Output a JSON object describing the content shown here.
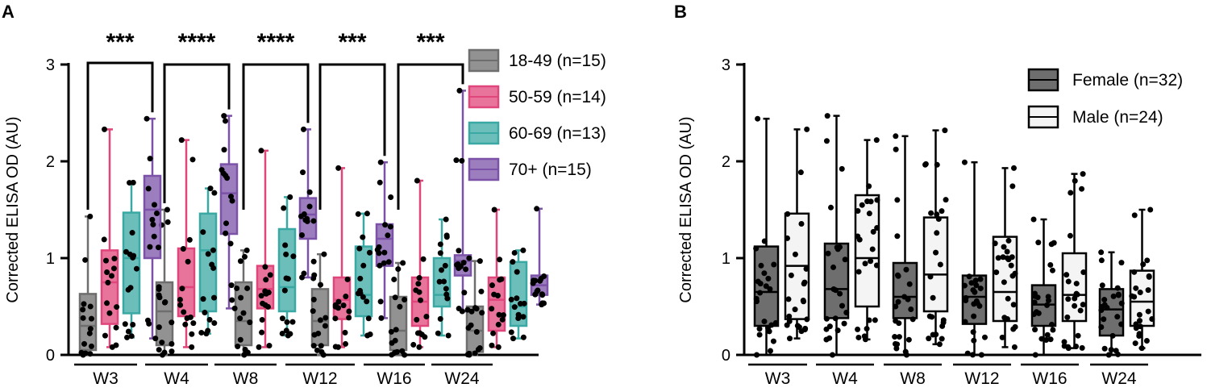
{
  "chart_data": [
    {
      "panel": "A",
      "type": "box",
      "xlabel": "",
      "ylabel": "Corrected ELISA OD (AU)",
      "ylim": [
        0,
        3
      ],
      "yticks": [
        0,
        1,
        2,
        3
      ],
      "categories": [
        "W3",
        "W4",
        "W8",
        "W12",
        "W16",
        "W24"
      ],
      "legend_position": "top-right",
      "series": [
        {
          "name": "18-49 (n=15)",
          "color": "#6e6e6e",
          "stats": [
            {
              "min": 0.0,
              "q1": 0.05,
              "median": 0.3,
              "q3": 0.63,
              "max": 1.43
            },
            {
              "min": 0.0,
              "q1": 0.1,
              "median": 0.45,
              "q3": 0.75,
              "max": 1.5
            },
            {
              "min": 0.0,
              "q1": 0.1,
              "median": 0.35,
              "q3": 0.75,
              "max": 1.08
            },
            {
              "min": 0.0,
              "q1": 0.1,
              "median": 0.35,
              "q3": 0.68,
              "max": 1.04
            },
            {
              "min": 0.0,
              "q1": 0.05,
              "median": 0.25,
              "q3": 0.6,
              "max": 0.95
            },
            {
              "min": 0.0,
              "q1": 0.03,
              "median": 0.25,
              "q3": 0.5,
              "max": 0.97
            }
          ]
        },
        {
          "name": "50-59 (n=14)",
          "color": "#e0457b",
          "stats": [
            {
              "min": 0.08,
              "q1": 0.32,
              "median": 0.75,
              "q3": 1.08,
              "max": 2.33
            },
            {
              "min": 0.08,
              "q1": 0.4,
              "median": 0.7,
              "q3": 1.1,
              "max": 2.22
            },
            {
              "min": 0.08,
              "q1": 0.48,
              "median": 0.68,
              "q3": 0.92,
              "max": 2.11
            },
            {
              "min": 0.08,
              "q1": 0.37,
              "median": 0.57,
              "q3": 0.8,
              "max": 1.93
            },
            {
              "min": 0.08,
              "q1": 0.3,
              "median": 0.55,
              "q3": 0.8,
              "max": 1.8
            },
            {
              "min": 0.08,
              "q1": 0.25,
              "median": 0.57,
              "q3": 0.8,
              "max": 1.5
            }
          ]
        },
        {
          "name": "60-69 (n=13)",
          "color": "#3aa8a3",
          "stats": [
            {
              "min": 0.18,
              "q1": 0.43,
              "median": 1.0,
              "q3": 1.47,
              "max": 1.78
            },
            {
              "min": 0.22,
              "q1": 0.45,
              "median": 1.08,
              "q3": 1.46,
              "max": 1.72
            },
            {
              "min": 0.2,
              "q1": 0.45,
              "median": 0.7,
              "q3": 1.3,
              "max": 1.63
            },
            {
              "min": 0.2,
              "q1": 0.4,
              "median": 0.62,
              "q3": 1.12,
              "max": 1.46
            },
            {
              "min": 0.2,
              "q1": 0.5,
              "median": 0.62,
              "q3": 1.0,
              "max": 1.4
            },
            {
              "min": 0.17,
              "q1": 0.3,
              "median": 0.5,
              "q3": 0.96,
              "max": 1.08
            }
          ]
        },
        {
          "name": "70+ (n=15)",
          "color": "#7b52a8",
          "stats": [
            {
              "min": 0.17,
              "q1": 1.0,
              "median": 1.5,
              "q3": 1.85,
              "max": 2.44
            },
            {
              "min": 0.48,
              "q1": 1.25,
              "median": 1.67,
              "q3": 1.97,
              "max": 2.47
            },
            {
              "min": 0.8,
              "q1": 1.2,
              "median": 1.45,
              "q3": 1.62,
              "max": 2.33
            },
            {
              "min": 0.38,
              "q1": 0.92,
              "median": 1.2,
              "q3": 1.35,
              "max": 1.99
            },
            {
              "min": 0.45,
              "q1": 0.82,
              "median": 0.97,
              "q3": 1.03,
              "max": 2.73
            },
            {
              "min": 0.52,
              "q1": 0.62,
              "median": 0.72,
              "q3": 0.82,
              "max": 1.51
            }
          ]
        }
      ],
      "significance": [
        {
          "category": "W3",
          "label": "***",
          "from": "18-49 (n=15)",
          "to": "70+ (n=15)"
        },
        {
          "category": "W4",
          "label": "****",
          "from": "18-49 (n=15)",
          "to": "70+ (n=15)"
        },
        {
          "category": "W8",
          "label": "****",
          "from": "18-49 (n=15)",
          "to": "70+ (n=15)"
        },
        {
          "category": "W12",
          "label": "***",
          "from": "18-49 (n=15)",
          "to": "70+ (n=15)"
        },
        {
          "category": "W16",
          "label": "***",
          "from": "18-49 (n=15)",
          "to": "70+ (n=15)"
        }
      ]
    },
    {
      "panel": "B",
      "type": "box",
      "xlabel": "",
      "ylabel": "Corrected ELISA OD (AU)",
      "ylim": [
        0,
        3
      ],
      "yticks": [
        0,
        1,
        2,
        3
      ],
      "categories": [
        "W3",
        "W4",
        "W8",
        "W12",
        "W16",
        "W24"
      ],
      "legend_position": "top-right",
      "series": [
        {
          "name": "Female (n=32)",
          "color": "#6e6e6e",
          "stats": [
            {
              "min": 0.0,
              "q1": 0.3,
              "median": 0.65,
              "q3": 1.12,
              "max": 2.44
            },
            {
              "min": 0.0,
              "q1": 0.38,
              "median": 0.68,
              "q3": 1.15,
              "max": 2.47
            },
            {
              "min": 0.0,
              "q1": 0.38,
              "median": 0.6,
              "q3": 0.95,
              "max": 2.26
            },
            {
              "min": 0.0,
              "q1": 0.32,
              "median": 0.6,
              "q3": 0.82,
              "max": 1.99
            },
            {
              "min": 0.0,
              "q1": 0.3,
              "median": 0.52,
              "q3": 0.72,
              "max": 1.4
            },
            {
              "min": 0.0,
              "q1": 0.2,
              "median": 0.47,
              "q3": 0.68,
              "max": 1.06
            }
          ]
        },
        {
          "name": "Male (n=24)",
          "color": "#f4f4f4",
          "stats": [
            {
              "min": 0.17,
              "q1": 0.37,
              "median": 0.92,
              "q3": 1.46,
              "max": 2.33
            },
            {
              "min": 0.16,
              "q1": 0.5,
              "median": 1.0,
              "q3": 1.65,
              "max": 2.22
            },
            {
              "min": 0.11,
              "q1": 0.45,
              "median": 0.83,
              "q3": 1.42,
              "max": 2.32
            },
            {
              "min": 0.08,
              "q1": 0.35,
              "median": 0.65,
              "q3": 1.22,
              "max": 1.93
            },
            {
              "min": 0.07,
              "q1": 0.35,
              "median": 0.62,
              "q3": 1.05,
              "max": 1.87
            },
            {
              "min": 0.07,
              "q1": 0.3,
              "median": 0.55,
              "q3": 0.87,
              "max": 1.5
            }
          ]
        }
      ]
    }
  ],
  "figure": {
    "panel_letters": [
      "A",
      "B"
    ]
  }
}
